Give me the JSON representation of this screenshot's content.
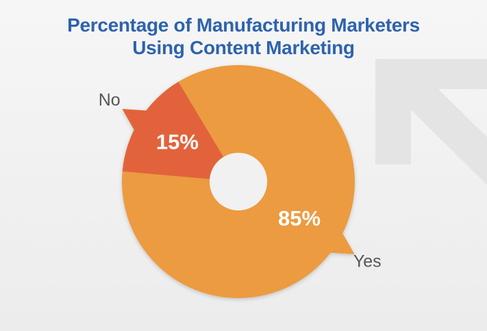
{
  "chart_data": {
    "type": "donut",
    "title": "Percentage of Manufacturing Marketers\nUsing Content Marketing",
    "categories": [
      "Yes",
      "No"
    ],
    "values": [
      85,
      15
    ],
    "value_labels": [
      "85%",
      "15%"
    ],
    "colors": [
      "#ec9b40",
      "#e2643a"
    ]
  }
}
